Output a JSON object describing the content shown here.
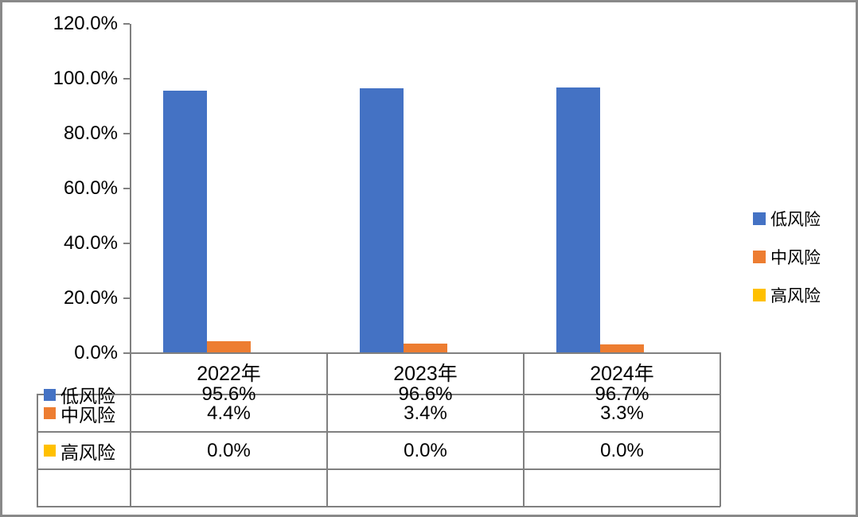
{
  "window": {
    "background": "#ffffff",
    "frame_color": "#898989",
    "axis_color": "#808080",
    "table_border_color": "#808080",
    "text_color": "#000000"
  },
  "chart_data": {
    "type": "bar",
    "title": "",
    "xlabel": "",
    "ylabel": "",
    "categories": [
      "2022年",
      "2023年",
      "2024年"
    ],
    "series": [
      {
        "name": "低风险",
        "color": "#4472C4",
        "values": [
          95.6,
          96.6,
          96.7
        ],
        "labels": [
          "95.6%",
          "96.6%",
          "96.7%"
        ]
      },
      {
        "name": "中风险",
        "color": "#ED7D31",
        "values": [
          4.4,
          3.4,
          3.3
        ],
        "labels": [
          "4.4%",
          "3.4%",
          "3.3%"
        ]
      },
      {
        "name": "高风险",
        "color": "#FFC000",
        "values": [
          0.0,
          0.0,
          0.0
        ],
        "labels": [
          "0.0%",
          "0.0%",
          "0.0%"
        ]
      }
    ],
    "ylim": [
      0,
      120
    ],
    "ytick_labels": [
      "0.0%",
      "20.0%",
      "40.0%",
      "60.0%",
      "80.0%",
      "100.0%",
      "120.0%"
    ],
    "grid": false,
    "legend_position": "right",
    "has_data_table": true,
    "value_suffix": "%"
  }
}
